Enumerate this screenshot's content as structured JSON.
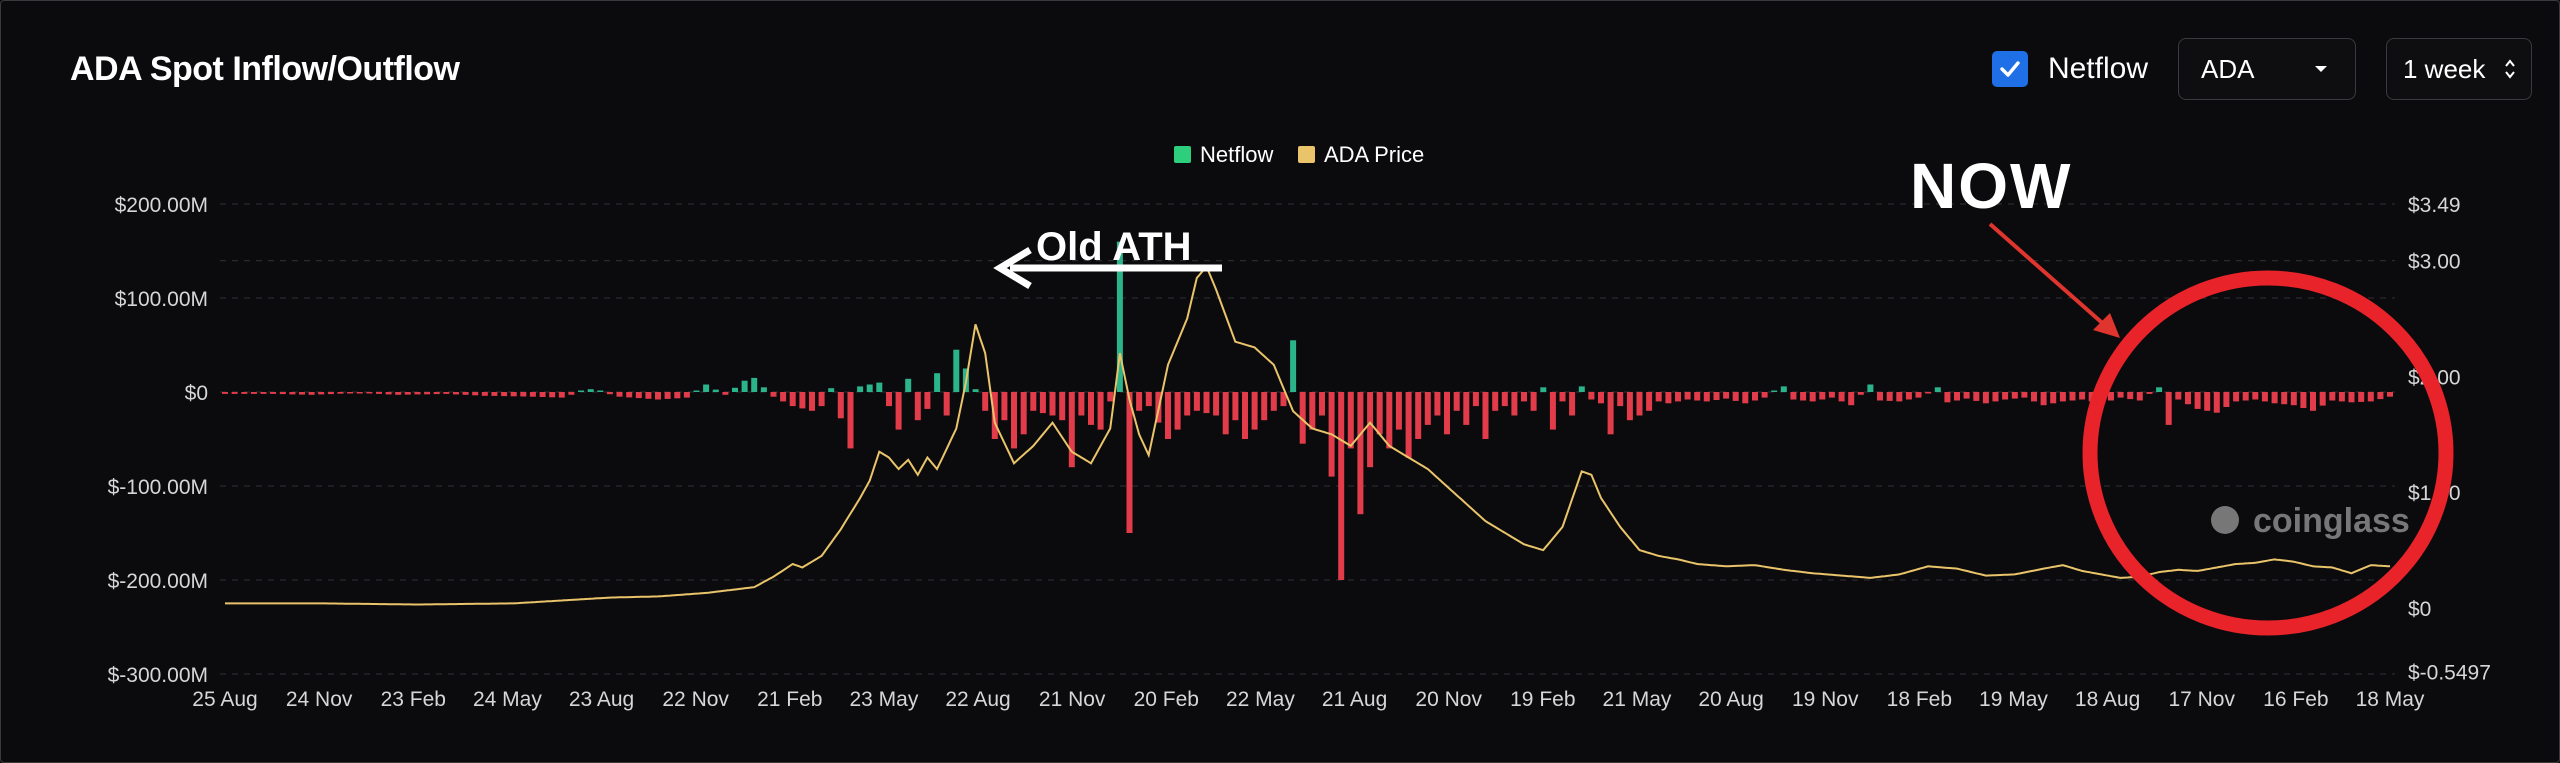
{
  "header": {
    "title": "ADA Spot Inflow/Outflow",
    "netflow_toggle_label": "Netflow",
    "netflow_checked": true,
    "coin_select_value": "ADA",
    "range_select_value": "1 week"
  },
  "colors": {
    "background": "#0b0b0d",
    "inflow_positive": "#2bb38a",
    "outflow_negative": "#e23c4b",
    "price_line": "#e9c46a",
    "legend_netflow": "#2dcf7d",
    "legend_price": "#e9c46a",
    "annotation_circle": "#e8232a",
    "annotation_arrow": "#e0352e",
    "checkbox_blue": "#1f6fe6"
  },
  "annotations": {
    "old_ath_label": "Old ATH",
    "now_label": "NOW"
  },
  "watermark": "coinglass",
  "chart_data": {
    "type": "bar",
    "legend": [
      "Netflow",
      "ADA Price"
    ],
    "left_axis": {
      "ticks": [
        "$200.00M",
        "$100.00M",
        "$0",
        "$-100.00M",
        "$-200.00M",
        "$-300.00M"
      ],
      "tick_values": [
        200,
        100,
        0,
        -100,
        -200,
        -300
      ],
      "ylim": [
        -300,
        200
      ],
      "unit": "USD millions"
    },
    "right_axis": {
      "ticks": [
        "$3.49",
        "$3.00",
        "$2.00",
        "$1.00",
        "$0",
        "$-0.5497"
      ],
      "tick_values": [
        3.49,
        3.0,
        2.0,
        1.0,
        0,
        -0.5497
      ],
      "ylim": [
        -0.5497,
        3.49
      ],
      "unit": "USD"
    },
    "x_tick_labels": [
      "25 Aug",
      "24 Nov",
      "23 Feb",
      "24 May",
      "23 Aug",
      "22 Nov",
      "21 Feb",
      "23 May",
      "22 Aug",
      "21 Nov",
      "20 Feb",
      "22 May",
      "21 Aug",
      "20 Nov",
      "19 Feb",
      "21 May",
      "20 Aug",
      "19 Nov",
      "18 Feb",
      "19 May",
      "18 Aug",
      "17 Nov",
      "16 Feb",
      "18 May"
    ],
    "x_range": [
      "25 Aug",
      "18 May"
    ],
    "bar_count": 226,
    "netflow_keyframes": [
      [
        0,
        -2
      ],
      [
        5,
        -2
      ],
      [
        9,
        -3
      ],
      [
        14,
        -1
      ],
      [
        18,
        -3
      ],
      [
        23,
        -2
      ],
      [
        27,
        -4
      ],
      [
        32,
        -5
      ],
      [
        35,
        -6
      ],
      [
        38,
        3
      ],
      [
        41,
        -5
      ],
      [
        45,
        -8
      ],
      [
        48,
        -6
      ],
      [
        50,
        8
      ],
      [
        52,
        -3
      ],
      [
        54,
        12
      ],
      [
        55,
        15
      ],
      [
        57,
        -5
      ],
      [
        59,
        -15
      ],
      [
        61,
        -20
      ],
      [
        62,
        -15
      ],
      [
        63,
        4
      ],
      [
        65,
        -60
      ],
      [
        66,
        6
      ],
      [
        68,
        10
      ],
      [
        70,
        -40
      ],
      [
        71,
        14
      ],
      [
        72,
        -30
      ],
      [
        73,
        -18
      ],
      [
        74,
        20
      ],
      [
        75,
        -25
      ],
      [
        76,
        45
      ],
      [
        77,
        25
      ],
      [
        78,
        3
      ],
      [
        79,
        -20
      ],
      [
        80,
        -50
      ],
      [
        81,
        -30
      ],
      [
        82,
        -60
      ],
      [
        83,
        -45
      ],
      [
        84,
        -20
      ],
      [
        86,
        -25
      ],
      [
        87,
        -30
      ],
      [
        88,
        -80
      ],
      [
        89,
        -25
      ],
      [
        90,
        -35
      ],
      [
        91,
        -40
      ],
      [
        92,
        -10
      ],
      [
        93,
        160
      ],
      [
        94,
        -150
      ],
      [
        95,
        -20
      ],
      [
        96,
        -15
      ],
      [
        98,
        -50
      ],
      [
        99,
        -40
      ],
      [
        100,
        -25
      ],
      [
        101,
        -20
      ],
      [
        103,
        -25
      ],
      [
        104,
        -45
      ],
      [
        105,
        -30
      ],
      [
        106,
        -50
      ],
      [
        107,
        -40
      ],
      [
        109,
        -20
      ],
      [
        110,
        -15
      ],
      [
        111,
        55
      ],
      [
        112,
        -55
      ],
      [
        113,
        -40
      ],
      [
        114,
        -25
      ],
      [
        115,
        -90
      ],
      [
        116,
        -200
      ],
      [
        117,
        -60
      ],
      [
        118,
        -130
      ],
      [
        119,
        -80
      ],
      [
        120,
        -45
      ],
      [
        121,
        -60
      ],
      [
        122,
        -40
      ],
      [
        123,
        -70
      ],
      [
        124,
        -50
      ],
      [
        125,
        -35
      ],
      [
        126,
        -25
      ],
      [
        127,
        -45
      ],
      [
        128,
        -20
      ],
      [
        129,
        -35
      ],
      [
        130,
        -15
      ],
      [
        131,
        -50
      ],
      [
        132,
        -20
      ],
      [
        133,
        -15
      ],
      [
        134,
        -25
      ],
      [
        135,
        -10
      ],
      [
        136,
        -20
      ],
      [
        137,
        5
      ],
      [
        138,
        -40
      ],
      [
        139,
        -10
      ],
      [
        140,
        -25
      ],
      [
        141,
        6
      ],
      [
        142,
        -8
      ],
      [
        143,
        -12
      ],
      [
        144,
        -45
      ],
      [
        145,
        -15
      ],
      [
        146,
        -30
      ],
      [
        147,
        -25
      ],
      [
        148,
        -20
      ],
      [
        149,
        -10
      ],
      [
        150,
        -12
      ],
      [
        152,
        -8
      ],
      [
        154,
        -10
      ],
      [
        156,
        -7
      ],
      [
        158,
        -12
      ],
      [
        160,
        -6
      ],
      [
        162,
        6
      ],
      [
        163,
        -8
      ],
      [
        165,
        -10
      ],
      [
        167,
        -6
      ],
      [
        169,
        -14
      ],
      [
        171,
        8
      ],
      [
        172,
        -9
      ],
      [
        174,
        -10
      ],
      [
        176,
        -6
      ],
      [
        178,
        5
      ],
      [
        179,
        -11
      ],
      [
        181,
        -7
      ],
      [
        183,
        -12
      ],
      [
        185,
        -8
      ],
      [
        187,
        -6
      ],
      [
        189,
        -14
      ],
      [
        191,
        -10
      ],
      [
        193,
        -8
      ],
      [
        195,
        -12
      ],
      [
        197,
        -6
      ],
      [
        199,
        -9
      ],
      [
        201,
        5
      ],
      [
        202,
        -35
      ],
      [
        203,
        -8
      ],
      [
        205,
        -18
      ],
      [
        207,
        -22
      ],
      [
        209,
        -10
      ],
      [
        211,
        -8
      ],
      [
        213,
        -12
      ],
      [
        215,
        -14
      ],
      [
        217,
        -20
      ],
      [
        219,
        -9
      ],
      [
        221,
        -11
      ],
      [
        223,
        -10
      ],
      [
        225,
        -5
      ]
    ],
    "price_keyframes": [
      [
        0,
        0.04
      ],
      [
        10,
        0.04
      ],
      [
        20,
        0.03
      ],
      [
        30,
        0.04
      ],
      [
        36,
        0.07
      ],
      [
        40,
        0.09
      ],
      [
        45,
        0.1
      ],
      [
        50,
        0.13
      ],
      [
        53,
        0.16
      ],
      [
        55,
        0.18
      ],
      [
        57,
        0.27
      ],
      [
        59,
        0.38
      ],
      [
        60,
        0.35
      ],
      [
        62,
        0.45
      ],
      [
        64,
        0.68
      ],
      [
        66,
        0.95
      ],
      [
        67,
        1.1
      ],
      [
        68,
        1.35
      ],
      [
        69,
        1.3
      ],
      [
        70,
        1.2
      ],
      [
        71,
        1.28
      ],
      [
        72,
        1.15
      ],
      [
        73,
        1.3
      ],
      [
        74,
        1.2
      ],
      [
        76,
        1.55
      ],
      [
        77,
        1.95
      ],
      [
        78,
        2.45
      ],
      [
        79,
        2.2
      ],
      [
        80,
        1.6
      ],
      [
        82,
        1.25
      ],
      [
        84,
        1.4
      ],
      [
        86,
        1.6
      ],
      [
        88,
        1.35
      ],
      [
        90,
        1.25
      ],
      [
        92,
        1.55
      ],
      [
        93,
        2.2
      ],
      [
        94,
        1.8
      ],
      [
        95,
        1.5
      ],
      [
        96,
        1.32
      ],
      [
        98,
        2.1
      ],
      [
        100,
        2.5
      ],
      [
        101,
        2.85
      ],
      [
        102,
        2.95
      ],
      [
        103,
        2.75
      ],
      [
        105,
        2.3
      ],
      [
        107,
        2.25
      ],
      [
        109,
        2.1
      ],
      [
        111,
        1.7
      ],
      [
        113,
        1.55
      ],
      [
        115,
        1.5
      ],
      [
        117,
        1.4
      ],
      [
        119,
        1.6
      ],
      [
        121,
        1.4
      ],
      [
        123,
        1.3
      ],
      [
        125,
        1.2
      ],
      [
        127,
        1.05
      ],
      [
        129,
        0.9
      ],
      [
        131,
        0.75
      ],
      [
        133,
        0.65
      ],
      [
        135,
        0.55
      ],
      [
        137,
        0.5
      ],
      [
        139,
        0.7
      ],
      [
        141,
        1.18
      ],
      [
        142,
        1.15
      ],
      [
        143,
        0.95
      ],
      [
        145,
        0.7
      ],
      [
        147,
        0.5
      ],
      [
        149,
        0.45
      ],
      [
        151,
        0.42
      ],
      [
        153,
        0.38
      ],
      [
        156,
        0.36
      ],
      [
        159,
        0.37
      ],
      [
        162,
        0.33
      ],
      [
        165,
        0.3
      ],
      [
        168,
        0.28
      ],
      [
        171,
        0.26
      ],
      [
        174,
        0.29
      ],
      [
        177,
        0.36
      ],
      [
        180,
        0.34
      ],
      [
        183,
        0.28
      ],
      [
        186,
        0.29
      ],
      [
        189,
        0.34
      ],
      [
        191,
        0.37
      ],
      [
        193,
        0.32
      ],
      [
        195,
        0.29
      ],
      [
        197,
        0.26
      ],
      [
        199,
        0.27
      ],
      [
        201,
        0.31
      ],
      [
        203,
        0.33
      ],
      [
        205,
        0.32
      ],
      [
        207,
        0.35
      ],
      [
        209,
        0.38
      ],
      [
        211,
        0.39
      ],
      [
        213,
        0.42
      ],
      [
        215,
        0.4
      ],
      [
        217,
        0.36
      ],
      [
        219,
        0.35
      ],
      [
        221,
        0.3
      ],
      [
        223,
        0.37
      ],
      [
        225,
        0.36
      ]
    ]
  }
}
